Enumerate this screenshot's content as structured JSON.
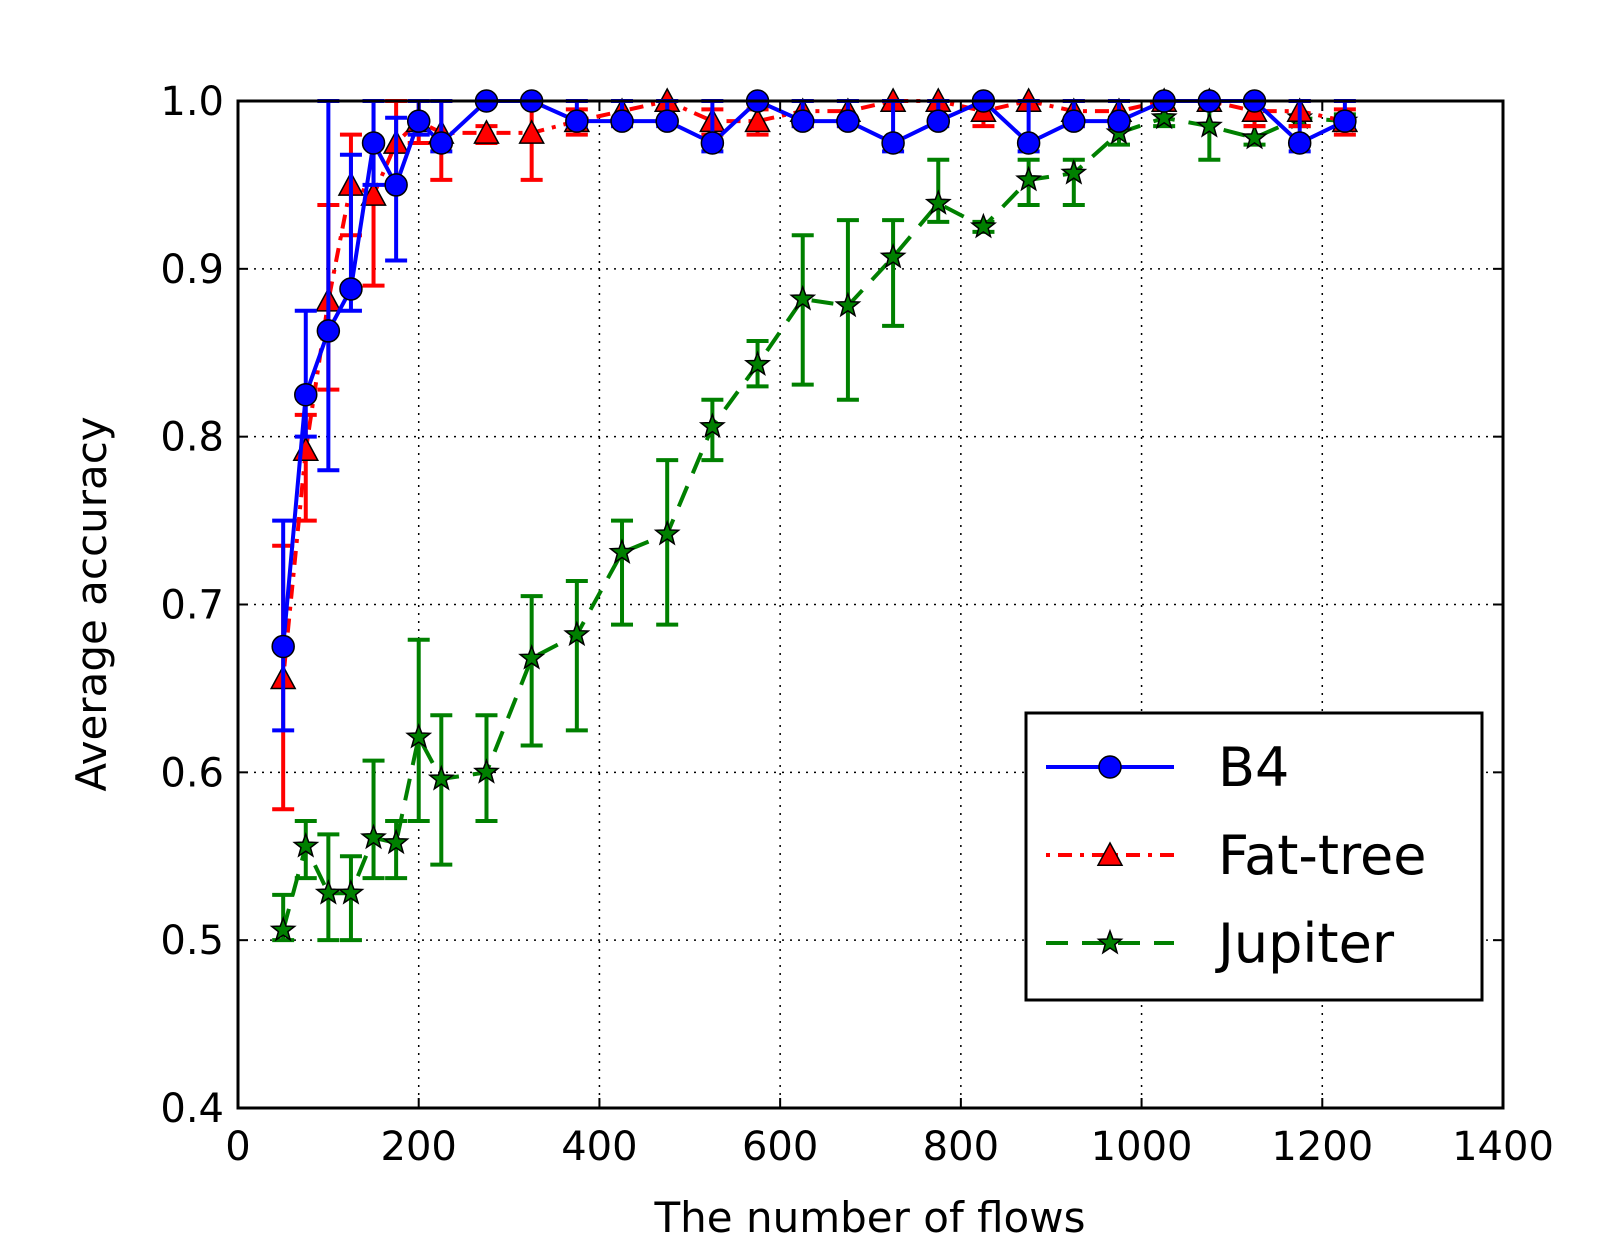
{
  "chart_data": {
    "type": "line",
    "xlabel": "The number of flows",
    "ylabel": "Average accuracy",
    "xlim": [
      0,
      1400
    ],
    "ylim": [
      0.4,
      1.0
    ],
    "xticks": [
      0,
      200,
      400,
      600,
      800,
      1000,
      1200,
      1400
    ],
    "yticks": [
      0.4,
      0.5,
      0.6,
      0.7,
      0.8,
      0.9,
      1.0
    ],
    "xtick_labels": [
      "0",
      "200",
      "400",
      "600",
      "800",
      "1000",
      "1200",
      "1400"
    ],
    "ytick_labels": [
      "0.4",
      "0.5",
      "0.6",
      "0.7",
      "0.8",
      "0.9",
      "1.0"
    ],
    "grid": true,
    "legend_position": "lower-right",
    "x": [
      50,
      75,
      100,
      125,
      150,
      175,
      200,
      225,
      275,
      325,
      375,
      425,
      475,
      525,
      575,
      625,
      675,
      725,
      775,
      825,
      875,
      925,
      975,
      1025,
      1075,
      1125,
      1175,
      1225
    ],
    "series": [
      {
        "name": "B4",
        "color": "#0000ff",
        "line_style": "solid",
        "marker": "circle",
        "values": [
          0.675,
          0.825,
          0.863,
          0.888,
          0.975,
          0.95,
          0.988,
          0.975,
          1.0,
          1.0,
          0.988,
          0.988,
          0.988,
          0.975,
          1.0,
          0.988,
          0.988,
          0.975,
          0.988,
          1.0,
          0.975,
          0.988,
          0.988,
          1.0,
          1.0,
          1.0,
          0.975,
          0.988
        ],
        "err_low": [
          0.625,
          0.8,
          0.78,
          0.875,
          0.95,
          0.905,
          0.98,
          0.97,
          1.0,
          1.0,
          0.985,
          0.985,
          0.985,
          0.97,
          1.0,
          0.985,
          0.985,
          0.97,
          0.985,
          1.0,
          0.97,
          0.985,
          0.985,
          1.0,
          1.0,
          1.0,
          0.97,
          0.985
        ],
        "err_high": [
          0.75,
          0.875,
          1.0,
          0.968,
          1.0,
          0.99,
          1.0,
          1.0,
          1.0,
          1.0,
          1.0,
          1.0,
          1.0,
          1.0,
          1.0,
          1.0,
          1.0,
          1.0,
          1.0,
          1.0,
          1.0,
          1.0,
          1.0,
          1.0,
          1.0,
          1.0,
          1.0,
          1.0
        ]
      },
      {
        "name": "Fat-tree",
        "color": "#ff0000",
        "line_style": "dashdot",
        "marker": "triangle",
        "values": [
          0.656,
          0.792,
          0.881,
          0.95,
          0.944,
          0.975,
          0.988,
          0.981,
          0.981,
          0.981,
          0.988,
          0.994,
          1.0,
          0.988,
          0.988,
          0.994,
          0.994,
          1.0,
          1.0,
          0.994,
          1.0,
          0.994,
          0.994,
          1.0,
          1.0,
          0.994,
          0.994,
          0.988
        ],
        "err_low": [
          0.578,
          0.75,
          0.828,
          0.92,
          0.89,
          0.95,
          0.975,
          0.953,
          0.975,
          0.953,
          0.98,
          0.985,
          0.995,
          0.98,
          0.98,
          0.985,
          0.985,
          0.995,
          0.995,
          0.985,
          0.995,
          0.985,
          0.985,
          0.995,
          0.995,
          0.985,
          0.985,
          0.98
        ],
        "err_high": [
          0.735,
          0.813,
          0.938,
          0.98,
          1.0,
          1.0,
          1.0,
          1.0,
          0.985,
          1.0,
          0.995,
          1.0,
          1.0,
          0.995,
          0.995,
          1.0,
          1.0,
          1.0,
          1.0,
          1.0,
          1.0,
          1.0,
          1.0,
          1.0,
          1.0,
          1.0,
          1.0,
          0.995
        ]
      },
      {
        "name": "Jupiter",
        "color": "#008000",
        "line_style": "dashed",
        "marker": "star",
        "values": [
          0.506,
          0.556,
          0.528,
          0.528,
          0.561,
          0.558,
          0.621,
          0.596,
          0.6,
          0.668,
          0.682,
          0.731,
          0.742,
          0.806,
          0.843,
          0.882,
          0.878,
          0.907,
          0.939,
          0.925,
          0.953,
          0.957,
          0.981,
          0.99,
          0.985,
          0.978,
          0.99,
          0.988
        ],
        "err_low": [
          0.5,
          0.537,
          0.5,
          0.5,
          0.537,
          0.537,
          0.571,
          0.545,
          0.571,
          0.616,
          0.625,
          0.688,
          0.688,
          0.786,
          0.83,
          0.831,
          0.822,
          0.866,
          0.928,
          0.922,
          0.938,
          0.938,
          0.974,
          0.985,
          0.965,
          0.974,
          0.985,
          0.985
        ],
        "err_high": [
          0.527,
          0.571,
          0.563,
          0.55,
          0.607,
          0.571,
          0.679,
          0.634,
          0.634,
          0.705,
          0.714,
          0.75,
          0.786,
          0.822,
          0.857,
          0.92,
          0.929,
          0.929,
          0.965,
          0.928,
          0.965,
          0.965,
          0.99,
          1.0,
          1.0,
          0.985,
          1.0,
          0.992
        ]
      }
    ]
  }
}
